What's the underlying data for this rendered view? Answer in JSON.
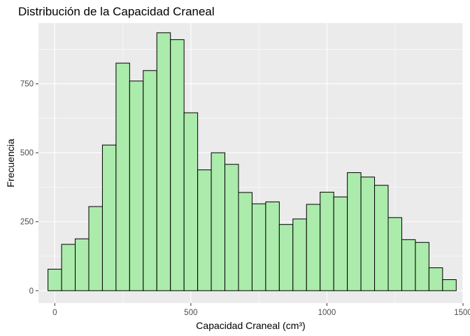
{
  "chart_data": {
    "type": "bar",
    "title": "Distribución de la Capacidad Craneal",
    "xlabel": "Capacidad Craneal (cm³)",
    "ylabel": "Frecuencia",
    "xlim": [
      -60,
      1500
    ],
    "ylim": [
      -45,
      970
    ],
    "x_ticks": [
      0,
      500,
      1000,
      1500
    ],
    "x_tick_labels": [
      "0",
      "500",
      "1000",
      "1500"
    ],
    "y_ticks": [
      0,
      250,
      500,
      750
    ],
    "y_tick_labels": [
      "0",
      "250",
      "500",
      "750"
    ],
    "bin_width": 50,
    "bin_centers": [
      0,
      50,
      100,
      150,
      200,
      250,
      300,
      350,
      400,
      450,
      500,
      550,
      600,
      650,
      700,
      750,
      800,
      850,
      900,
      950,
      1000,
      1050,
      1100,
      1150,
      1200,
      1250,
      1300,
      1350,
      1400,
      1450
    ],
    "values": [
      78,
      168,
      188,
      305,
      528,
      825,
      760,
      798,
      935,
      910,
      645,
      438,
      500,
      458,
      356,
      315,
      322,
      240,
      260,
      313,
      357,
      340,
      428,
      412,
      382,
      265,
      185,
      175,
      83,
      40
    ],
    "grid": true,
    "legend": "none",
    "bar_fill": "#abebab",
    "bar_stroke": "#000000",
    "panel_background": "#ebebeb",
    "grid_color": "#ffffff"
  }
}
